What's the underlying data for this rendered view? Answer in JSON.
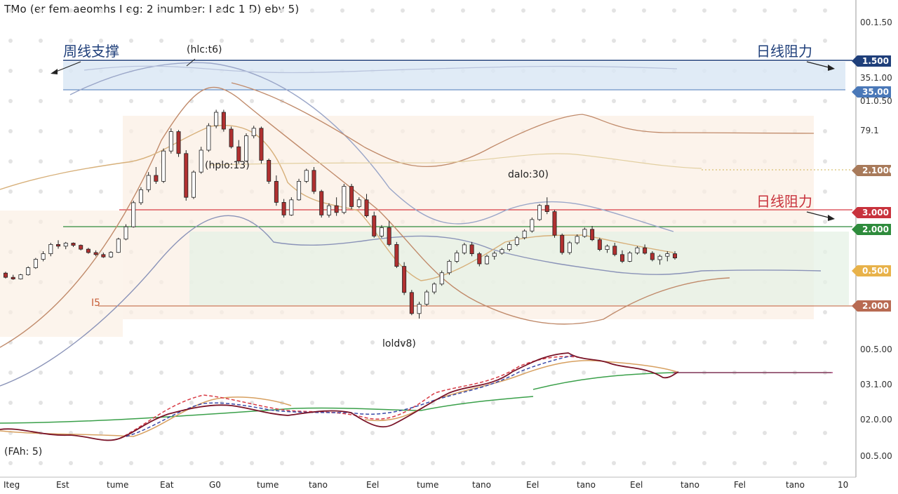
{
  "header": {
    "title": "TMo (er fem aeomhs  I eg: 2    inumber:  I adc 1 D)  ebv 5)"
  },
  "indicator_pane": {
    "label": "(FAh: 5)"
  },
  "price_axis": {
    "ticks": [
      "00.1.50",
      "01.0.50",
      "35.1.00",
      "79.1",
      "00.5.00",
      "03.1.00",
      "02.0.00",
      "00.5.00"
    ],
    "badges": [
      {
        "text": "1.500",
        "color": "#1f3f7a",
        "price": 1.5
      },
      {
        "text": "35.00",
        "color": "#4a78b8",
        "price": 1.35
      },
      {
        "text": "2.1000",
        "color": "#a87a5a",
        "price": 0.95
      },
      {
        "text": "3.000",
        "color": "#c8323c",
        "price": 0.74
      },
      {
        "text": "2.000",
        "color": "#2e8b3c",
        "price": 0.68
      },
      {
        "text": "0.500",
        "color": "#e8b24a",
        "price": 0.42
      },
      {
        "text": "2.000",
        "color": "#b86a52",
        "price": 0.26
      }
    ]
  },
  "x_axis": {
    "labels": [
      "Iteg",
      "Est",
      "tume",
      "Eat",
      "G0",
      "tume",
      "tano",
      "Eel",
      "tume",
      "tano",
      "Eel",
      "tano",
      "Eel",
      "tano",
      "Fel",
      "tano",
      "10"
    ]
  },
  "annotations": {
    "peak": "(hlc:t6)",
    "mid_high": "(hplo:13)",
    "right_high": "dalo:30)",
    "low": "loldv8)",
    "left_level": "I5",
    "weekly_support": "周线支撑",
    "daily_resistance_top": "日线阻力",
    "daily_resistance_mid": "日线阻力"
  },
  "colors": {
    "blue_zone": "#dbe7f5",
    "orange_zone": "#fbeee2",
    "green_zone": "#e6f2e6",
    "up_candle": "#ffffff",
    "down_candle": "#b03030",
    "red_line": "#d83a44",
    "green_line": "#2e8b3c",
    "blue_line": "#1f3f7a",
    "brown_line": "#c87a5a",
    "ma_slow": "#c08a6a",
    "ma_fast": "#d7b07a",
    "band_gray": "#8a93b8",
    "sig_darkred": "#7a1428",
    "sig_red_dash": "#d83a44",
    "sig_blue_dash": "#3a4aa8",
    "sig_gold": "#d7a060",
    "sig_green": "#3aa04a"
  },
  "chart_data": {
    "type": "candlestick",
    "candles": [
      [
        0.43,
        0.438,
        0.398,
        0.405
      ],
      [
        0.405,
        0.42,
        0.39,
        0.395
      ],
      [
        0.395,
        0.425,
        0.392,
        0.42
      ],
      [
        0.42,
        0.47,
        0.415,
        0.462
      ],
      [
        0.462,
        0.52,
        0.455,
        0.512
      ],
      [
        0.512,
        0.56,
        0.5,
        0.545
      ],
      [
        0.545,
        0.61,
        0.53,
        0.6
      ],
      [
        0.6,
        0.625,
        0.575,
        0.59
      ],
      [
        0.59,
        0.615,
        0.572,
        0.608
      ],
      [
        0.608,
        0.612,
        0.585,
        0.595
      ],
      [
        0.595,
        0.6,
        0.565,
        0.572
      ],
      [
        0.572,
        0.58,
        0.545,
        0.552
      ],
      [
        0.552,
        0.565,
        0.53,
        0.54
      ],
      [
        0.54,
        0.552,
        0.52,
        0.526
      ],
      [
        0.526,
        0.56,
        0.52,
        0.553
      ],
      [
        0.553,
        0.64,
        0.55,
        0.632
      ],
      [
        0.632,
        0.72,
        0.625,
        0.705
      ],
      [
        0.705,
        0.86,
        0.7,
        0.848
      ],
      [
        0.848,
        0.94,
        0.835,
        0.925
      ],
      [
        0.925,
        1.03,
        0.91,
        1.01
      ],
      [
        1.01,
        1.06,
        0.96,
        0.975
      ],
      [
        0.975,
        1.17,
        0.965,
        1.155
      ],
      [
        1.155,
        1.29,
        1.14,
        1.27
      ],
      [
        1.27,
        1.28,
        1.12,
        1.14
      ],
      [
        1.14,
        1.16,
        0.86,
        0.88
      ],
      [
        0.88,
        1.04,
        0.87,
        1.03
      ],
      [
        1.03,
        1.18,
        1.02,
        1.16
      ],
      [
        1.16,
        1.32,
        1.15,
        1.305
      ],
      [
        1.305,
        1.4,
        1.29,
        1.385
      ],
      [
        1.385,
        1.4,
        1.27,
        1.285
      ],
      [
        1.285,
        1.3,
        1.17,
        1.18
      ],
      [
        1.18,
        1.22,
        1.08,
        1.095
      ],
      [
        1.095,
        1.26,
        1.09,
        1.245
      ],
      [
        1.245,
        1.305,
        1.23,
        1.29
      ],
      [
        1.29,
        1.3,
        1.08,
        1.1
      ],
      [
        1.1,
        1.11,
        0.96,
        0.975
      ],
      [
        0.975,
        1.01,
        0.83,
        0.85
      ],
      [
        0.85,
        0.87,
        0.76,
        0.775
      ],
      [
        0.775,
        0.88,
        0.77,
        0.865
      ],
      [
        0.865,
        0.99,
        0.86,
        0.975
      ],
      [
        0.975,
        1.05,
        0.965,
        1.04
      ],
      [
        1.04,
        1.06,
        0.9,
        0.915
      ],
      [
        0.915,
        0.925,
        0.76,
        0.775
      ],
      [
        0.775,
        0.845,
        0.76,
        0.83
      ],
      [
        0.83,
        0.88,
        0.77,
        0.79
      ],
      [
        0.79,
        0.96,
        0.78,
        0.945
      ],
      [
        0.945,
        0.96,
        0.81,
        0.825
      ],
      [
        0.825,
        0.88,
        0.815,
        0.865
      ],
      [
        0.865,
        0.9,
        0.76,
        0.77
      ],
      [
        0.77,
        0.795,
        0.64,
        0.65
      ],
      [
        0.65,
        0.715,
        0.64,
        0.7
      ],
      [
        0.7,
        0.74,
        0.59,
        0.6
      ],
      [
        0.6,
        0.615,
        0.46,
        0.47
      ],
      [
        0.47,
        0.495,
        0.3,
        0.315
      ],
      [
        0.315,
        0.33,
        0.18,
        0.19
      ],
      [
        0.19,
        0.26,
        0.16,
        0.245
      ],
      [
        0.245,
        0.33,
        0.235,
        0.318
      ],
      [
        0.318,
        0.375,
        0.305,
        0.365
      ],
      [
        0.365,
        0.445,
        0.355,
        0.432
      ],
      [
        0.432,
        0.51,
        0.42,
        0.5
      ],
      [
        0.5,
        0.565,
        0.49,
        0.55
      ],
      [
        0.55,
        0.61,
        0.54,
        0.598
      ],
      [
        0.598,
        0.615,
        0.53,
        0.545
      ],
      [
        0.545,
        0.555,
        0.47,
        0.485
      ],
      [
        0.485,
        0.54,
        0.48,
        0.53
      ],
      [
        0.53,
        0.56,
        0.51,
        0.548
      ],
      [
        0.548,
        0.58,
        0.54,
        0.57
      ],
      [
        0.57,
        0.615,
        0.56,
        0.6
      ],
      [
        0.6,
        0.65,
        0.59,
        0.64
      ],
      [
        0.64,
        0.69,
        0.63,
        0.68
      ],
      [
        0.68,
        0.76,
        0.67,
        0.748
      ],
      [
        0.748,
        0.84,
        0.74,
        0.832
      ],
      [
        0.832,
        0.88,
        0.78,
        0.795
      ],
      [
        0.795,
        0.805,
        0.64,
        0.655
      ],
      [
        0.655,
        0.665,
        0.54,
        0.552
      ],
      [
        0.552,
        0.62,
        0.54,
        0.61
      ],
      [
        0.61,
        0.66,
        0.6,
        0.648
      ],
      [
        0.648,
        0.7,
        0.64,
        0.69
      ],
      [
        0.69,
        0.71,
        0.62,
        0.628
      ],
      [
        0.628,
        0.64,
        0.56,
        0.57
      ],
      [
        0.57,
        0.6,
        0.55,
        0.59
      ],
      [
        0.59,
        0.61,
        0.53,
        0.54
      ],
      [
        0.54,
        0.565,
        0.49,
        0.5
      ],
      [
        0.5,
        0.56,
        0.495,
        0.55
      ],
      [
        0.55,
        0.59,
        0.54,
        0.58
      ],
      [
        0.58,
        0.6,
        0.54,
        0.548
      ],
      [
        0.548,
        0.56,
        0.5,
        0.51
      ],
      [
        0.51,
        0.54,
        0.48,
        0.53
      ],
      [
        0.53,
        0.56,
        0.5,
        0.545
      ],
      [
        0.545,
        0.56,
        0.51,
        0.52
      ]
    ],
    "levels": {
      "blue_line": 1.5,
      "blue_zone": [
        1.35,
        1.5
      ],
      "red_line": 0.74,
      "green_line": 0.68,
      "brown_line": 0.26
    },
    "xlim": [
      0,
      100
    ],
    "ylim": [
      -0.2,
      1.7
    ]
  }
}
